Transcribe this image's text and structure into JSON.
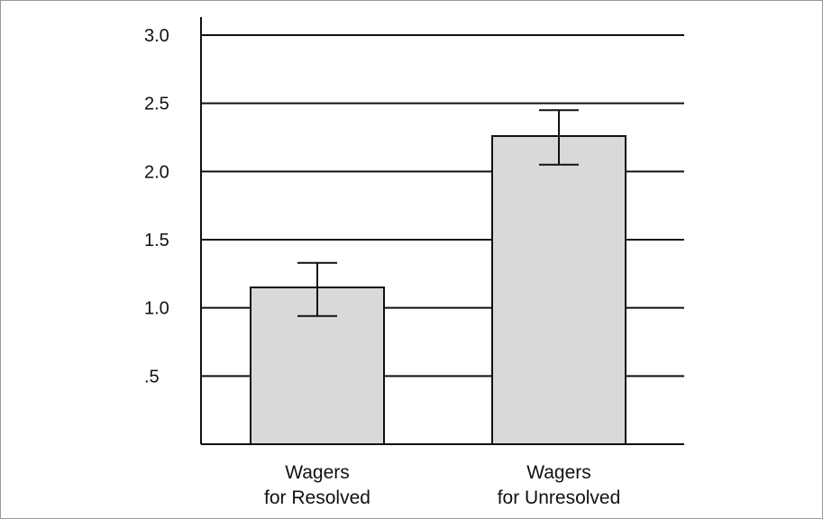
{
  "chart_data": {
    "type": "bar",
    "title": "",
    "xlabel": "",
    "ylabel": "",
    "ylim": [
      0,
      3.0
    ],
    "grid": true,
    "y_ticks": [
      {
        "value": 0.5,
        "label": ".5"
      },
      {
        "value": 1.0,
        "label": "1.0"
      },
      {
        "value": 1.5,
        "label": "1.5"
      },
      {
        "value": 2.0,
        "label": "2.0"
      },
      {
        "value": 2.5,
        "label": "2.5"
      },
      {
        "value": 3.0,
        "label": "3.0"
      }
    ],
    "categories": [
      {
        "line1": "Wagers",
        "line2": "for Resolved"
      },
      {
        "line1": "Wagers",
        "line2": "for Unresolved"
      }
    ],
    "values": [
      1.15,
      2.26
    ],
    "error_low": [
      0.94,
      2.05
    ],
    "error_high": [
      1.33,
      2.45
    ],
    "bar_color": "#d9d9d9",
    "line_color": "#111111"
  }
}
